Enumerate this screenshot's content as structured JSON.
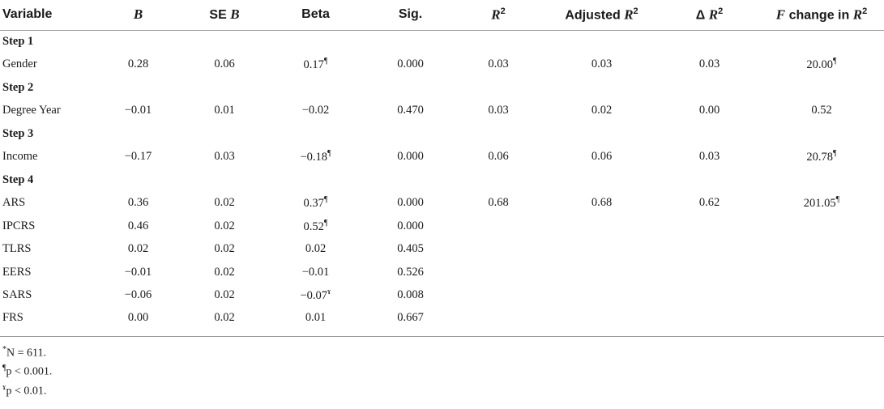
{
  "headers": {
    "variable": "Variable",
    "b": "B",
    "se_prefix": "SE ",
    "se_b": "B",
    "beta": "Beta",
    "sig": "Sig.",
    "r2_r": "R",
    "r2_sup": "2",
    "adj_prefix": "Adjusted ",
    "adj_r": "R",
    "adj_sup": "2",
    "delta_prefix": "Δ ",
    "delta_r": "R",
    "delta_sup": "2",
    "f_f": "F",
    "f_mid": " change in ",
    "f_r": "R",
    "f_sup": "2"
  },
  "rows": [
    {
      "type": "step",
      "label": "Step 1"
    },
    {
      "type": "data",
      "cells": [
        "Gender",
        "0.28",
        "0.06",
        "0.17",
        "0.000",
        "0.03",
        "0.03",
        "0.03",
        "20.00"
      ],
      "marks": {
        "3": "¶",
        "8": "¶"
      }
    },
    {
      "type": "step",
      "label": "Step 2"
    },
    {
      "type": "data",
      "cells": [
        "Degree Year",
        "−0.01",
        "0.01",
        "−0.02",
        "0.470",
        "0.03",
        "0.02",
        "0.00",
        "0.52"
      ],
      "marks": {}
    },
    {
      "type": "step",
      "label": "Step 3"
    },
    {
      "type": "data",
      "cells": [
        "Income",
        "−0.17",
        "0.03",
        "−0.18",
        "0.000",
        "0.06",
        "0.06",
        "0.03",
        "20.78"
      ],
      "marks": {
        "3": "¶",
        "8": "¶"
      }
    },
    {
      "type": "step",
      "label": "Step 4"
    },
    {
      "type": "data",
      "cells": [
        "ARS",
        "0.36",
        "0.02",
        "0.37",
        "0.000",
        "0.68",
        "0.68",
        "0.62",
        "201.05"
      ],
      "marks": {
        "3": "¶",
        "8": "¶"
      }
    },
    {
      "type": "data",
      "cells": [
        "IPCRS",
        "0.46",
        "0.02",
        "0.52",
        "0.000",
        "",
        "",
        "",
        ""
      ],
      "marks": {
        "3": "¶"
      }
    },
    {
      "type": "data",
      "cells": [
        "TLRS",
        "0.02",
        "0.02",
        "0.02",
        "0.405",
        "",
        "",
        "",
        ""
      ],
      "marks": {}
    },
    {
      "type": "data",
      "cells": [
        "EERS",
        "−0.01",
        "0.02",
        "−0.01",
        "0.526",
        "",
        "",
        "",
        ""
      ],
      "marks": {}
    },
    {
      "type": "data",
      "cells": [
        "SARS",
        "−0.06",
        "0.02",
        "−0.07",
        "0.008",
        "",
        "",
        "",
        ""
      ],
      "marks": {
        "3": "ɤ"
      }
    },
    {
      "type": "data",
      "cells": [
        "FRS",
        "0.00",
        "0.02",
        "0.01",
        "0.667",
        "",
        "",
        "",
        ""
      ],
      "marks": {}
    }
  ],
  "footnotes": [
    {
      "mark": "*",
      "text": "N = 611."
    },
    {
      "mark": "¶",
      "text": "p < 0.001."
    },
    {
      "mark": "ɤ",
      "text": "p < 0.01."
    }
  ]
}
